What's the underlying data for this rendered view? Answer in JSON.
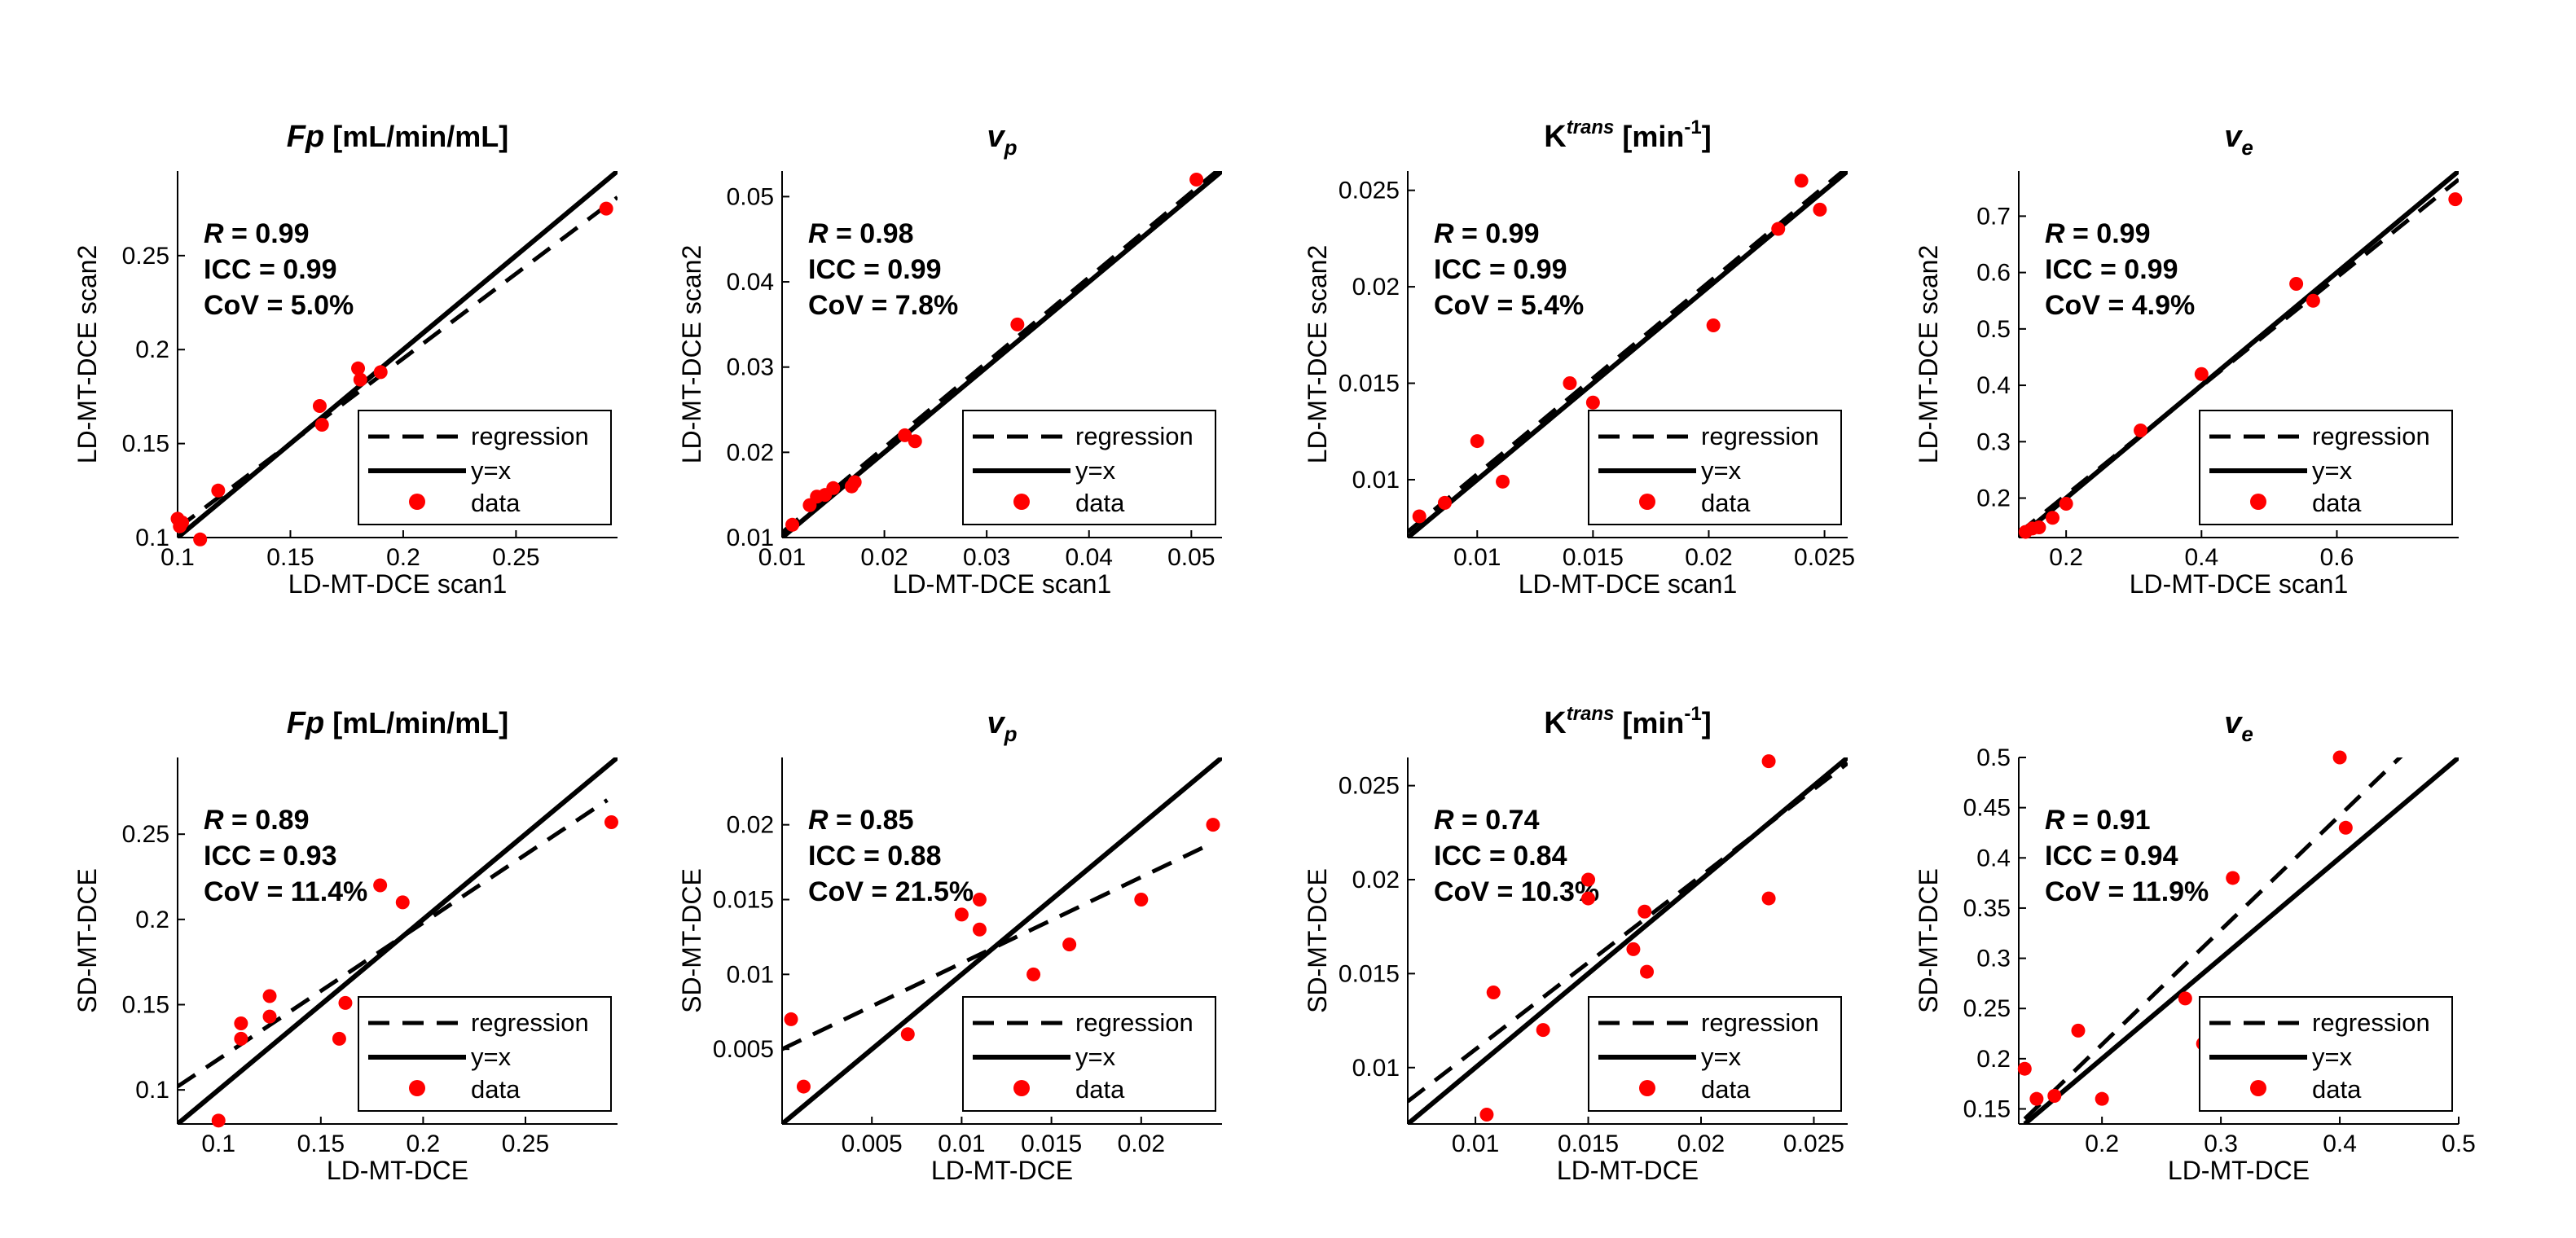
{
  "figure": {
    "colors": {
      "data": "#ff0000",
      "line": "#000000",
      "background": "#ffffff"
    },
    "line_styles": {
      "regression": "dashed",
      "identity": "solid"
    }
  },
  "chart_data": [
    {
      "type": "scatter",
      "row": 1,
      "col": 1,
      "title_main": "Fp",
      "title_unit": " [mL/min/mL]",
      "title_sup": "",
      "title_sup_tail": "",
      "title_sub": "",
      "title_italic": true,
      "xlabel": "LD-MT-DCE  scan1",
      "ylabel": "LD-MT-DCE  scan2",
      "xlim": [
        0.1,
        0.295
      ],
      "ylim": [
        0.1,
        0.295
      ],
      "xticks": [
        0.1,
        0.15,
        0.2,
        0.25
      ],
      "xtick_labels": [
        "0.1",
        "0.15",
        "0.2",
        "0.25"
      ],
      "yticks": [
        0.1,
        0.15,
        0.2,
        0.25
      ],
      "ytick_labels": [
        "0.1",
        "0.15",
        "0.2",
        "0.25"
      ],
      "stats": {
        "r_label": "R",
        "r_value": " = 0.99",
        "icc": "ICC = 0.99",
        "cov": "CoV = 5.0%"
      },
      "legend": {
        "regression": "regression",
        "identity": "y=x",
        "data": "data",
        "position": "bottom-right"
      },
      "regression": {
        "x": [
          0.1,
          0.295
        ],
        "y": [
          0.105,
          0.281
        ]
      },
      "identity": {
        "x": [
          0.1,
          0.295
        ],
        "y": [
          0.1,
          0.295
        ]
      },
      "points": [
        [
          0.1,
          0.11
        ],
        [
          0.101,
          0.106
        ],
        [
          0.102,
          0.108
        ],
        [
          0.11,
          0.099
        ],
        [
          0.118,
          0.125
        ],
        [
          0.163,
          0.17
        ],
        [
          0.164,
          0.16
        ],
        [
          0.18,
          0.19
        ],
        [
          0.181,
          0.184
        ],
        [
          0.19,
          0.188
        ],
        [
          0.29,
          0.275
        ]
      ]
    },
    {
      "type": "scatter",
      "row": 1,
      "col": 2,
      "title_main": "v",
      "title_unit": "",
      "title_sup": "",
      "title_sup_tail": "",
      "title_sub": "p",
      "title_italic": true,
      "xlabel": "LD-MT-DCE  scan1",
      "ylabel": "LD-MT-DCE  scan2",
      "xlim": [
        0.01,
        0.053
      ],
      "ylim": [
        0.01,
        0.053
      ],
      "xticks": [
        0.01,
        0.02,
        0.03,
        0.04,
        0.05
      ],
      "xtick_labels": [
        "0.01",
        "0.02",
        "0.03",
        "0.04",
        "0.05"
      ],
      "yticks": [
        0.01,
        0.02,
        0.03,
        0.04,
        0.05
      ],
      "ytick_labels": [
        "0.01",
        "0.02",
        "0.03",
        "0.04",
        "0.05"
      ],
      "stats": {
        "r_label": "R",
        "r_value": " = 0.98",
        "icc": "ICC = 0.99",
        "cov": "CoV = 7.8%"
      },
      "legend": {
        "regression": "regression",
        "identity": "y=x",
        "data": "data",
        "position": "bottom-right"
      },
      "regression": {
        "x": [
          0.01,
          0.053
        ],
        "y": [
          0.0106,
          0.0535
        ]
      },
      "identity": {
        "x": [
          0.01,
          0.053
        ],
        "y": [
          0.01,
          0.053
        ]
      },
      "points": [
        [
          0.011,
          0.0115
        ],
        [
          0.0127,
          0.0138
        ],
        [
          0.0134,
          0.0148
        ],
        [
          0.0142,
          0.015
        ],
        [
          0.015,
          0.0158
        ],
        [
          0.0168,
          0.016
        ],
        [
          0.0171,
          0.0165
        ],
        [
          0.022,
          0.022
        ],
        [
          0.023,
          0.0213
        ],
        [
          0.033,
          0.035
        ],
        [
          0.0505,
          0.052
        ]
      ]
    },
    {
      "type": "scatter",
      "row": 1,
      "col": 3,
      "title_main": "K",
      "title_unit": " [min",
      "title_sup": "trans",
      "title_sup_tail": "-1",
      "title_sub": "",
      "title_italic": false,
      "xlabel": "LD-MT-DCE  scan1",
      "ylabel": "LD-MT-DCE  scan2",
      "xlim": [
        0.007,
        0.026
      ],
      "ylim": [
        0.007,
        0.026
      ],
      "xticks": [
        0.01,
        0.015,
        0.02,
        0.025
      ],
      "xtick_labels": [
        "0.01",
        "0.015",
        "0.02",
        "0.025"
      ],
      "yticks": [
        0.01,
        0.015,
        0.02,
        0.025
      ],
      "ytick_labels": [
        "0.01",
        "0.015",
        "0.02",
        "0.025"
      ],
      "stats": {
        "r_label": "R",
        "r_value": " = 0.99",
        "icc": "ICC = 0.99",
        "cov": "CoV = 5.4%"
      },
      "legend": {
        "regression": "regression",
        "identity": "y=x",
        "data": "data",
        "position": "bottom-right"
      },
      "regression": {
        "x": [
          0.007,
          0.026
        ],
        "y": [
          0.0073,
          0.0262
        ]
      },
      "identity": {
        "x": [
          0.007,
          0.026
        ],
        "y": [
          0.007,
          0.026
        ]
      },
      "points": [
        [
          0.0075,
          0.0081
        ],
        [
          0.0086,
          0.0088
        ],
        [
          0.01,
          0.012
        ],
        [
          0.0111,
          0.0099
        ],
        [
          0.014,
          0.015
        ],
        [
          0.015,
          0.014
        ],
        [
          0.0202,
          0.018
        ],
        [
          0.023,
          0.023
        ],
        [
          0.024,
          0.0255
        ],
        [
          0.0248,
          0.024
        ]
      ]
    },
    {
      "type": "scatter",
      "row": 1,
      "col": 4,
      "title_main": "v",
      "title_unit": "",
      "title_sup": "",
      "title_sup_tail": "",
      "title_sub": "e",
      "title_italic": true,
      "xlabel": "LD-MT-DCE  scan1",
      "ylabel": "LD-MT-DCE  scan2",
      "xlim": [
        0.13,
        0.78
      ],
      "ylim": [
        0.13,
        0.78
      ],
      "xticks": [
        0.2,
        0.4,
        0.6
      ],
      "xtick_labels": [
        "0.2",
        "0.4",
        "0.6"
      ],
      "yticks": [
        0.2,
        0.3,
        0.4,
        0.5,
        0.6,
        0.7
      ],
      "ytick_labels": [
        "0.2",
        "0.3",
        "0.4",
        "0.5",
        "0.6",
        "0.7"
      ],
      "stats": {
        "r_label": "R",
        "r_value": " = 0.99",
        "icc": "ICC = 0.99",
        "cov": "CoV = 4.9%"
      },
      "legend": {
        "regression": "regression",
        "identity": "y=x",
        "data": "data",
        "position": "bottom-right"
      },
      "regression": {
        "x": [
          0.13,
          0.78
        ],
        "y": [
          0.138,
          0.765
        ]
      },
      "identity": {
        "x": [
          0.13,
          0.78
        ],
        "y": [
          0.13,
          0.78
        ]
      },
      "points": [
        [
          0.14,
          0.14
        ],
        [
          0.15,
          0.146
        ],
        [
          0.16,
          0.148
        ],
        [
          0.18,
          0.165
        ],
        [
          0.2,
          0.19
        ],
        [
          0.31,
          0.32
        ],
        [
          0.4,
          0.42
        ],
        [
          0.54,
          0.58
        ],
        [
          0.565,
          0.55
        ],
        [
          0.775,
          0.73
        ]
      ]
    },
    {
      "type": "scatter",
      "row": 2,
      "col": 1,
      "title_main": "Fp",
      "title_unit": " [mL/min/mL]",
      "title_sup": "",
      "title_sup_tail": "",
      "title_sub": "",
      "title_italic": true,
      "xlabel": "LD-MT-DCE",
      "ylabel": "SD-MT-DCE",
      "xlim": [
        0.08,
        0.295
      ],
      "ylim": [
        0.08,
        0.295
      ],
      "xticks": [
        0.1,
        0.15,
        0.2,
        0.25
      ],
      "xtick_labels": [
        "0.1",
        "0.15",
        "0.2",
        "0.25"
      ],
      "yticks": [
        0.1,
        0.15,
        0.2,
        0.25
      ],
      "ytick_labels": [
        "0.1",
        "0.15",
        "0.2",
        "0.25"
      ],
      "stats": {
        "r_label": "R",
        "r_value": " = 0.89",
        "icc": "ICC = 0.93",
        "cov": "CoV = 11.4%"
      },
      "legend": {
        "regression": "regression",
        "identity": "y=x",
        "data": "data",
        "position": "bottom-right"
      },
      "regression": {
        "x": [
          0.08,
          0.29
        ],
        "y": [
          0.102,
          0.27
        ]
      },
      "identity": {
        "x": [
          0.08,
          0.295
        ],
        "y": [
          0.08,
          0.295
        ]
      },
      "points": [
        [
          0.1,
          0.082
        ],
        [
          0.111,
          0.139
        ],
        [
          0.111,
          0.13
        ],
        [
          0.125,
          0.155
        ],
        [
          0.125,
          0.143
        ],
        [
          0.159,
          0.13
        ],
        [
          0.162,
          0.151
        ],
        [
          0.179,
          0.22
        ],
        [
          0.19,
          0.21
        ],
        [
          0.292,
          0.257
        ]
      ]
    },
    {
      "type": "scatter",
      "row": 2,
      "col": 2,
      "title_main": "v",
      "title_unit": "",
      "title_sup": "",
      "title_sup_tail": "",
      "title_sub": "p",
      "title_italic": true,
      "xlabel": "LD-MT-DCE",
      "ylabel": "SD-MT-DCE",
      "xlim": [
        0.0,
        0.0245
      ],
      "ylim": [
        0.0,
        0.0245
      ],
      "xticks": [
        0.005,
        0.01,
        0.015,
        0.02
      ],
      "xtick_labels": [
        "0.005",
        "0.01",
        "0.015",
        "0.02"
      ],
      "yticks": [
        0.005,
        0.01,
        0.015,
        0.02
      ],
      "ytick_labels": [
        "0.005",
        "0.01",
        "0.015",
        "0.02"
      ],
      "stats": {
        "r_label": "R",
        "r_value": " = 0.85",
        "icc": "ICC = 0.88",
        "cov": "CoV = 21.5%"
      },
      "legend": {
        "regression": "regression",
        "identity": "y=x",
        "data": "data",
        "position": "bottom-right"
      },
      "regression": {
        "x": [
          0.0,
          0.024
        ],
        "y": [
          0.005,
          0.0188
        ]
      },
      "identity": {
        "x": [
          0.0,
          0.0245
        ],
        "y": [
          0.0,
          0.0245
        ]
      },
      "points": [
        [
          0.0005,
          0.007
        ],
        [
          0.0012,
          0.0025
        ],
        [
          0.007,
          0.006
        ],
        [
          0.01,
          0.014
        ],
        [
          0.011,
          0.015
        ],
        [
          0.011,
          0.013
        ],
        [
          0.014,
          0.01
        ],
        [
          0.016,
          0.012
        ],
        [
          0.02,
          0.015
        ],
        [
          0.024,
          0.02
        ]
      ]
    },
    {
      "type": "scatter",
      "row": 2,
      "col": 3,
      "title_main": "K",
      "title_unit": " [min",
      "title_sup": "trans",
      "title_sup_tail": "-1",
      "title_sub": "",
      "title_italic": false,
      "xlabel": "LD-MT-DCE",
      "ylabel": "SD-MT-DCE",
      "xlim": [
        0.007,
        0.0265
      ],
      "ylim": [
        0.007,
        0.0265
      ],
      "xticks": [
        0.01,
        0.015,
        0.02,
        0.025
      ],
      "xtick_labels": [
        "0.01",
        "0.015",
        "0.02",
        "0.025"
      ],
      "yticks": [
        0.01,
        0.015,
        0.02,
        0.025
      ],
      "ytick_labels": [
        "0.01",
        "0.015",
        "0.02",
        "0.025"
      ],
      "stats": {
        "r_label": "R",
        "r_value": " = 0.74",
        "icc": "ICC = 0.84",
        "cov": "CoV = 10.3%"
      },
      "legend": {
        "regression": "regression",
        "identity": "y=x",
        "data": "data",
        "position": "bottom-right"
      },
      "regression": {
        "x": [
          0.007,
          0.0265
        ],
        "y": [
          0.0082,
          0.0262
        ]
      },
      "identity": {
        "x": [
          0.007,
          0.0265
        ],
        "y": [
          0.007,
          0.0265
        ]
      },
      "points": [
        [
          0.0105,
          0.0075
        ],
        [
          0.0108,
          0.014
        ],
        [
          0.013,
          0.012
        ],
        [
          0.015,
          0.02
        ],
        [
          0.015,
          0.019
        ],
        [
          0.017,
          0.0163
        ],
        [
          0.0175,
          0.0183
        ],
        [
          0.0176,
          0.0151
        ],
        [
          0.023,
          0.0263
        ],
        [
          0.023,
          0.019
        ]
      ]
    },
    {
      "type": "scatter",
      "row": 2,
      "col": 4,
      "title_main": "v",
      "title_unit": "",
      "title_sup": "",
      "title_sup_tail": "",
      "title_sub": "e",
      "title_italic": true,
      "xlabel": "LD-MT-DCE",
      "ylabel": "SD-MT-DCE",
      "xlim": [
        0.13,
        0.5
      ],
      "ylim": [
        0.135,
        0.5
      ],
      "xticks": [
        0.2,
        0.3,
        0.4,
        0.5
      ],
      "xtick_labels": [
        "0.2",
        "0.3",
        "0.4",
        "0.5"
      ],
      "yticks": [
        0.15,
        0.2,
        0.25,
        0.3,
        0.35,
        0.4,
        0.45,
        0.5
      ],
      "ytick_labels": [
        "0.15",
        "0.2",
        "0.25",
        "0.3",
        "0.35",
        "0.4",
        "0.45",
        "0.5"
      ],
      "stats": {
        "r_label": "R",
        "r_value": " = 0.91",
        "icc": "ICC = 0.94",
        "cov": "CoV = 11.9%"
      },
      "legend": {
        "regression": "regression",
        "identity": "y=x",
        "data": "data",
        "position": "bottom-right"
      },
      "regression": {
        "x": [
          0.135,
          0.455
        ],
        "y": [
          0.14,
          0.505
        ]
      },
      "identity": {
        "x": [
          0.135,
          0.5
        ],
        "y": [
          0.135,
          0.5
        ]
      },
      "points": [
        [
          0.135,
          0.19
        ],
        [
          0.145,
          0.16
        ],
        [
          0.16,
          0.163
        ],
        [
          0.18,
          0.228
        ],
        [
          0.2,
          0.16
        ],
        [
          0.27,
          0.26
        ],
        [
          0.285,
          0.215
        ],
        [
          0.31,
          0.38
        ],
        [
          0.4,
          0.5
        ],
        [
          0.405,
          0.43
        ]
      ]
    }
  ]
}
